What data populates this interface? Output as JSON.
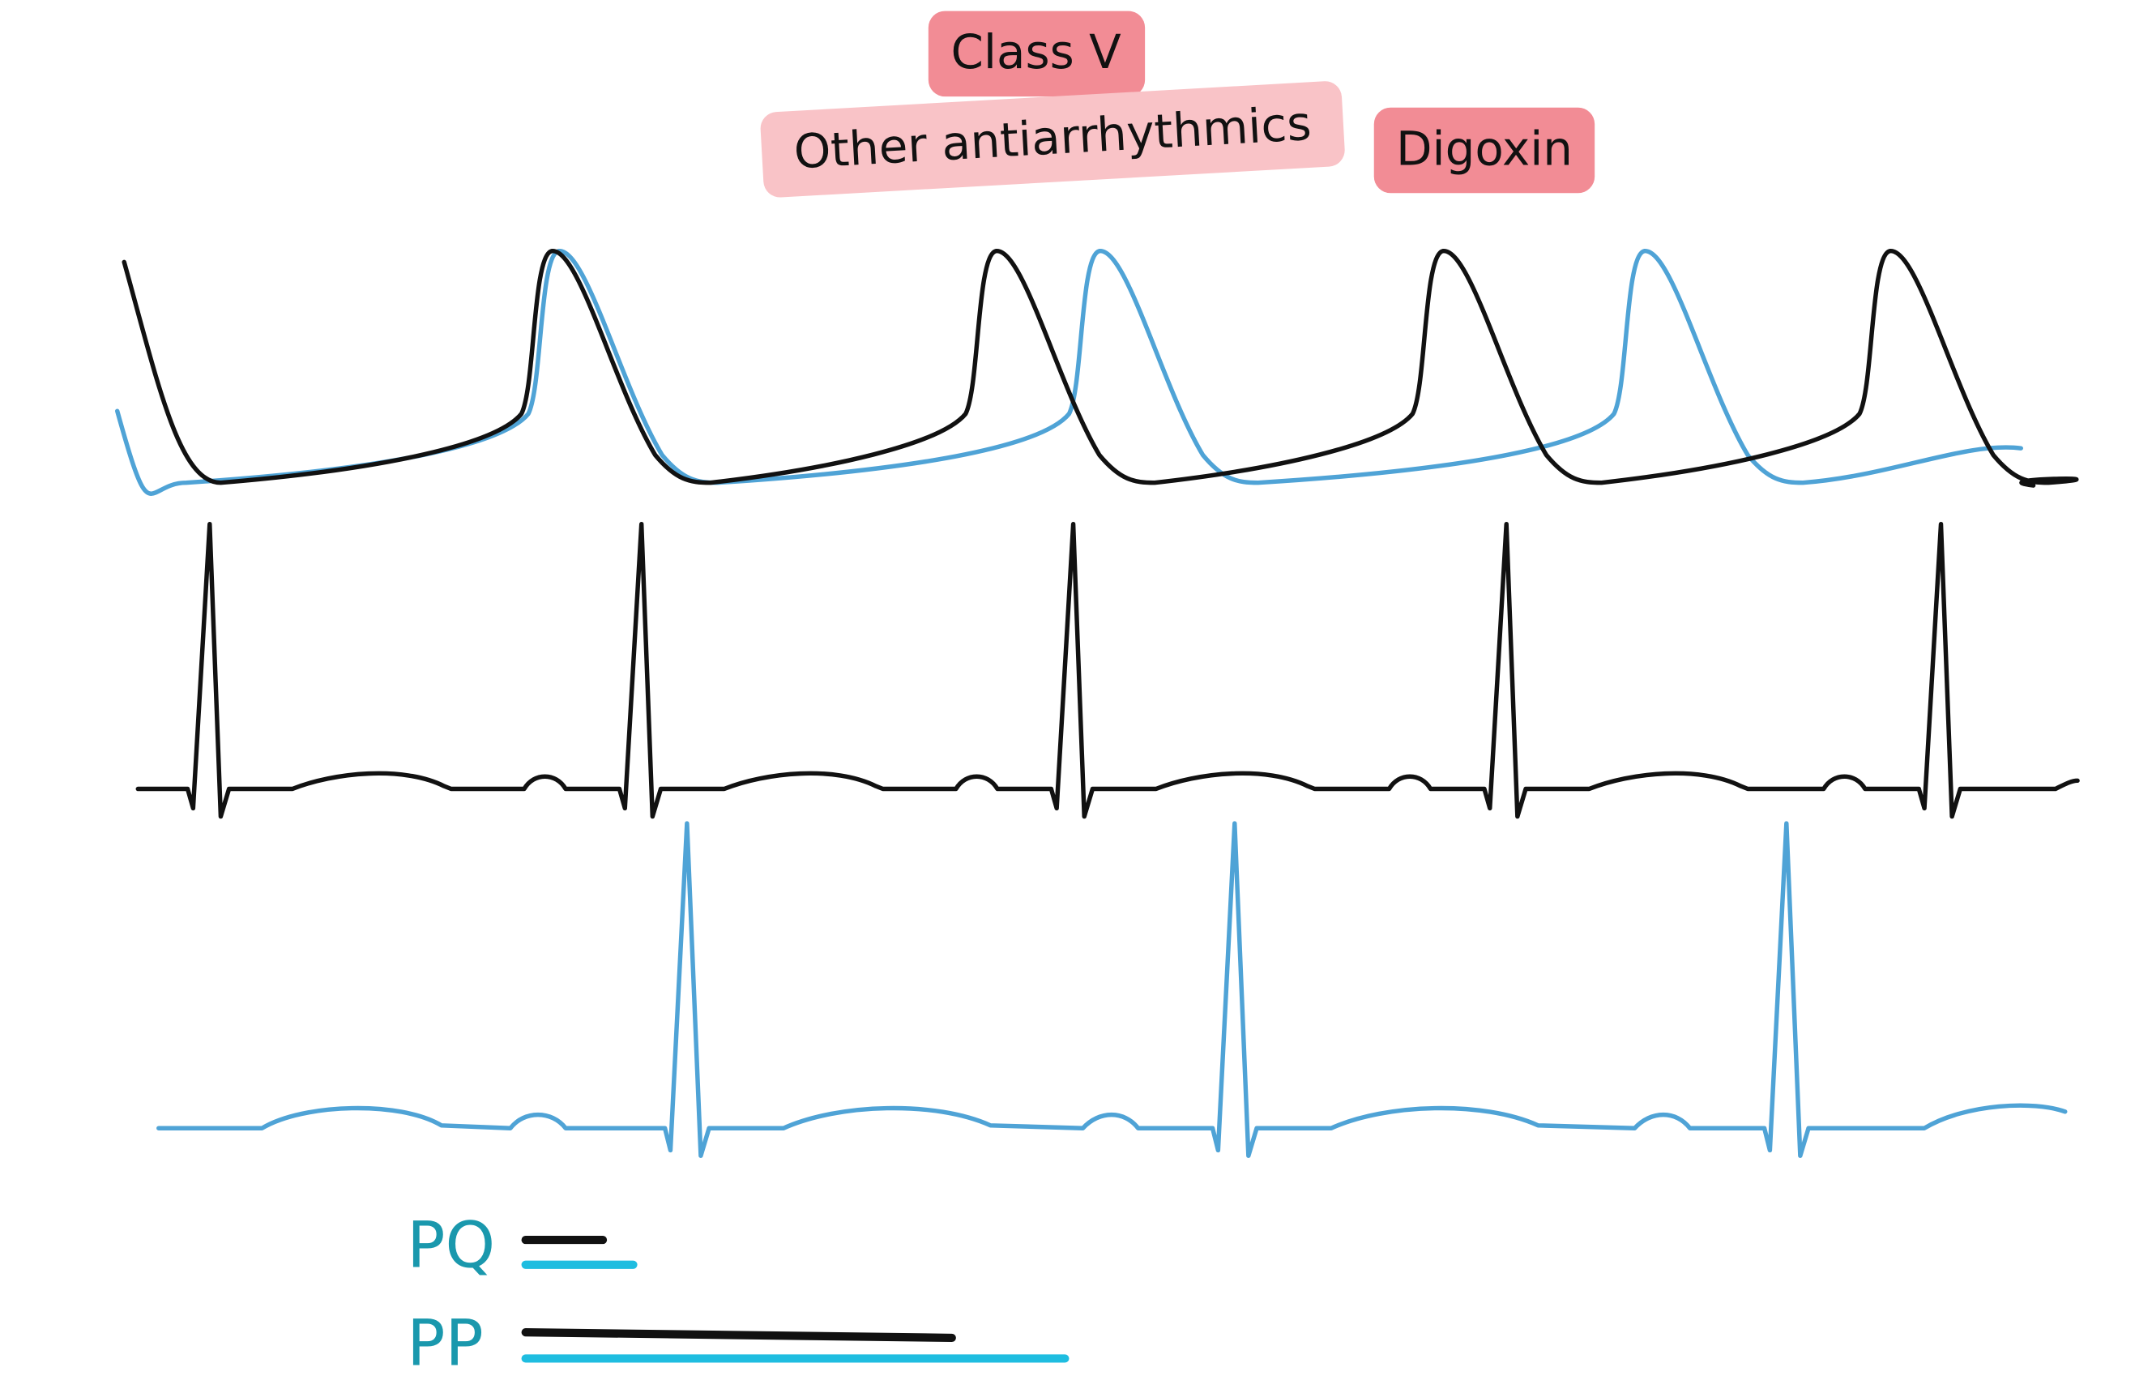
{
  "labels": {
    "class_v": "Class V",
    "other": "Other antiarrhythmics",
    "digoxin": "Digoxin"
  },
  "legend": {
    "pq": "PQ",
    "pp": "PP"
  }
}
